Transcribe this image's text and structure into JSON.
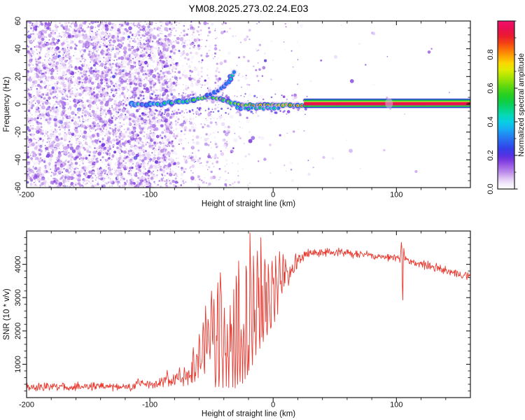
{
  "title": "YM08.2025.273.02.24.E03",
  "axes": {
    "x_label": "Height of straight line (km)",
    "spectrogram_y_label": "Frequency (Hz)",
    "snr_y_label": "SNR (10 * v/v)",
    "colorbar_label": "Normalized spectral amplitude"
  },
  "chart_data": [
    {
      "type": "heatmap",
      "title": "YM08.2025.273.02.24.E03",
      "xlabel": "Height of straight line (km)",
      "ylabel": "Frequency (Hz)",
      "xlim": [
        -200,
        160
      ],
      "ylim": [
        -60,
        60
      ],
      "x_major_ticks": [
        -200,
        -100,
        0,
        100
      ],
      "x_minor_step": 20,
      "y_major_ticks": [
        60,
        40,
        20,
        0,
        -20,
        -40,
        -60
      ],
      "y_minor_step": 5,
      "grid": false,
      "colorbar": {
        "label": "Normalized spectral amplitude",
        "range": [
          0,
          1
        ],
        "ticks": [
          0.0,
          0.2,
          0.4,
          0.6,
          0.8
        ],
        "minor_step": 0.1,
        "stops": [
          [
            0.0,
            "#ffffff"
          ],
          [
            0.03,
            "#f4ebfb"
          ],
          [
            0.06,
            "#e2c9f5"
          ],
          [
            0.1,
            "#bc8cea"
          ],
          [
            0.14,
            "#9a5ce4"
          ],
          [
            0.17,
            "#7b3ade"
          ],
          [
            0.2,
            "#5531e2"
          ],
          [
            0.24,
            "#3340e8"
          ],
          [
            0.28,
            "#2a62ee"
          ],
          [
            0.32,
            "#2287f2"
          ],
          [
            0.36,
            "#15aff2"
          ],
          [
            0.4,
            "#08cfe3"
          ],
          [
            0.44,
            "#05d8b4"
          ],
          [
            0.48,
            "#07d37c"
          ],
          [
            0.52,
            "#0ecd44"
          ],
          [
            0.56,
            "#27cf21"
          ],
          [
            0.61,
            "#5fd80f"
          ],
          [
            0.66,
            "#a2e405"
          ],
          [
            0.71,
            "#e0ec00"
          ],
          [
            0.75,
            "#fdd500"
          ],
          [
            0.79,
            "#fda403"
          ],
          [
            0.83,
            "#fb7209"
          ],
          [
            0.87,
            "#f34114"
          ],
          [
            0.91,
            "#ea1c2e"
          ],
          [
            0.95,
            "#e90f4d"
          ],
          [
            1.0,
            "#f10f6d"
          ]
        ]
      },
      "noise": {
        "description": "speckled galactic noise, dense for height < -95 km, fading rightward",
        "value_range": [
          0.02,
          0.18
        ],
        "density_profile": [
          [
            -200,
            1.0
          ],
          [
            -95,
            1.0
          ],
          [
            -78,
            0.42
          ],
          [
            -60,
            0.2
          ],
          [
            -40,
            0.1
          ],
          [
            -20,
            0.05
          ],
          [
            0,
            0.03
          ],
          [
            40,
            0.01
          ],
          [
            160,
            0.002
          ]
        ]
      },
      "streak_columns": [
        -189,
        -176,
        -165,
        -154,
        -143,
        -133,
        -124,
        -116,
        -108,
        -100,
        -93,
        -86,
        -79,
        -72,
        -66,
        -59,
        -53,
        -46,
        -38,
        -27,
        -20,
        -13
      ],
      "trail_points": [
        [
          -115,
          0.3,
          0.55
        ],
        [
          -112,
          -0.4,
          0.5
        ],
        [
          -109,
          0.4,
          0.62
        ],
        [
          -106,
          0,
          0.5
        ],
        [
          -103,
          -0.8,
          0.48
        ],
        [
          -100,
          0.2,
          0.56
        ],
        [
          -97,
          0.8,
          0.52
        ],
        [
          -94,
          0,
          0.62
        ],
        [
          -91,
          -0.4,
          0.52
        ],
        [
          -88,
          0.9,
          0.62
        ],
        [
          -85,
          1.4,
          0.56
        ],
        [
          -82,
          0.9,
          0.62
        ],
        [
          -79,
          1.8,
          0.66
        ],
        [
          -76,
          2.3,
          0.7
        ],
        [
          -73,
          1.9,
          0.6
        ],
        [
          -70,
          2.4,
          0.66
        ],
        [
          -67,
          2.9,
          0.72
        ],
        [
          -64,
          3.4,
          0.76
        ],
        [
          -61,
          3.9,
          0.7
        ],
        [
          -58,
          4.4,
          0.76
        ],
        [
          -55,
          4.9,
          0.8
        ],
        [
          -52,
          5.3,
          0.76
        ],
        [
          -49,
          4.9,
          0.7
        ],
        [
          -46,
          4.4,
          0.8
        ],
        [
          -43,
          3.9,
          0.76
        ],
        [
          -40,
          3.0,
          0.72
        ],
        [
          -37,
          2.0,
          0.76
        ],
        [
          -34,
          1.0,
          0.72
        ],
        [
          -31,
          0.4,
          0.78
        ],
        [
          -28,
          0,
          0.82
        ],
        [
          -25,
          -0.4,
          0.86
        ],
        [
          -22,
          -0.9,
          0.8
        ],
        [
          -19,
          -0.4,
          0.86
        ],
        [
          -16,
          -0.9,
          0.9
        ],
        [
          -13,
          -0.4,
          0.84
        ],
        [
          -10,
          -0.9,
          0.9
        ],
        [
          -7,
          -0.4,
          0.86
        ],
        [
          -4,
          -0.9,
          0.9
        ],
        [
          -1,
          -0.4,
          0.92
        ],
        [
          2,
          -0.9,
          0.88
        ],
        [
          5,
          -0.5,
          0.9
        ],
        [
          8,
          -0.9,
          0.92
        ],
        [
          11,
          -0.5,
          0.9
        ],
        [
          14,
          -0.9,
          0.93
        ],
        [
          17,
          -0.5,
          0.9
        ],
        [
          20,
          -0.6,
          0.92
        ],
        [
          23,
          -0.6,
          0.9
        ],
        [
          26,
          -0.6,
          0.93
        ]
      ],
      "lower_strand_points": [
        [
          -29,
          -2.6,
          0.6
        ],
        [
          -26,
          -3.1,
          0.55
        ],
        [
          -23,
          -2.7,
          0.62
        ],
        [
          -20,
          -3.2,
          0.65
        ],
        [
          -17,
          -2.7,
          0.6
        ],
        [
          -14,
          -3.1,
          0.62
        ],
        [
          -11,
          -2.6,
          0.66
        ],
        [
          -8,
          -3.0,
          0.6
        ],
        [
          -5,
          -2.6,
          0.62
        ],
        [
          -2,
          -3.0,
          0.56
        ],
        [
          1,
          -2.6,
          0.6
        ],
        [
          4,
          -2.9,
          0.56
        ]
      ],
      "branch_points": [
        [
          -54,
          6.4,
          0.45
        ],
        [
          -51,
          7.4,
          0.4
        ],
        [
          -48,
          8.6,
          0.45
        ],
        [
          -45,
          10.0,
          0.4
        ],
        [
          -42,
          11.6,
          0.46
        ],
        [
          -40,
          13.0,
          0.5
        ],
        [
          -38,
          14.6,
          0.46
        ],
        [
          -36,
          16.2,
          0.52
        ],
        [
          -35,
          20.0,
          0.66
        ],
        [
          -34,
          18.0,
          0.56
        ],
        [
          -33,
          21.2,
          0.6
        ],
        [
          -32,
          23.0,
          0.5
        ]
      ],
      "stripe": {
        "description": "saturated continuous echo line at ~0 Hz",
        "x_start": 25,
        "x_end": 160,
        "center_freq": 0.7,
        "layers": [
          [
            "#2d3fd6",
            1.7
          ],
          [
            "#17c63a",
            2.2
          ],
          [
            "#bfe707",
            1.1
          ],
          [
            "#e8134e",
            4.8
          ],
          [
            "#17c63a",
            2.1
          ],
          [
            "#2d3fd6",
            1.6
          ]
        ],
        "halo_x": 94
      }
    },
    {
      "type": "line",
      "xlabel": "Height of straight line (km)",
      "ylabel": "SNR (10 * v/v)",
      "xlim": [
        -200,
        160
      ],
      "ylim": [
        0,
        5000
      ],
      "x_major_ticks": [
        -200,
        -100,
        0,
        100
      ],
      "x_minor_step": 20,
      "y_major_ticks": [
        1000,
        2000,
        3000,
        4000
      ],
      "y_minor_step": 200,
      "grid": false,
      "color": "#e8392f",
      "envelope": [
        [
          -200,
          330,
          150
        ],
        [
          -192,
          320,
          140
        ],
        [
          -184,
          335,
          150
        ],
        [
          -176,
          325,
          140
        ],
        [
          -168,
          330,
          150
        ],
        [
          -160,
          345,
          160
        ],
        [
          -152,
          330,
          140
        ],
        [
          -144,
          325,
          145
        ],
        [
          -136,
          330,
          150
        ],
        [
          -128,
          335,
          150
        ],
        [
          -120,
          340,
          150
        ],
        [
          -114,
          330,
          140
        ],
        [
          -110,
          500,
          190
        ],
        [
          -106,
          430,
          170
        ],
        [
          -101,
          370,
          150
        ],
        [
          -96,
          390,
          160
        ],
        [
          -91,
          430,
          190
        ],
        [
          -87,
          510,
          240
        ],
        [
          -83,
          470,
          210
        ],
        [
          -79,
          540,
          260
        ],
        [
          -75,
          590,
          300
        ],
        [
          -71,
          640,
          330
        ],
        [
          -67,
          760,
          410
        ],
        [
          -64,
          700,
          380
        ],
        [
          -61,
          880,
          520
        ],
        [
          -58,
          1020,
          640
        ],
        [
          -55,
          1220,
          820
        ],
        [
          -52,
          1420,
          960
        ],
        [
          -49,
          1540,
          1040
        ],
        [
          -46,
          1750,
          1180
        ],
        [
          -43,
          1900,
          1280
        ],
        [
          -40,
          2000,
          1380
        ],
        [
          -37,
          2080,
          1460
        ],
        [
          -34,
          2160,
          1520
        ],
        [
          -31,
          2130,
          1580
        ],
        [
          -28,
          2260,
          1520
        ],
        [
          -25,
          2380,
          1450
        ],
        [
          -22,
          2470,
          1420
        ],
        [
          -19,
          2560,
          1380
        ],
        [
          -16,
          2650,
          1330
        ],
        [
          -13,
          2720,
          1270
        ],
        [
          -10,
          2780,
          1220
        ],
        [
          -7,
          2860,
          1130
        ],
        [
          -4,
          2920,
          1040
        ],
        [
          -1,
          2980,
          960
        ],
        [
          2,
          3120,
          880
        ],
        [
          5,
          3300,
          780
        ],
        [
          8,
          3490,
          690
        ],
        [
          11,
          3680,
          590
        ],
        [
          14,
          3870,
          480
        ],
        [
          17,
          4030,
          370
        ],
        [
          20,
          4150,
          290
        ],
        [
          23,
          4230,
          230
        ],
        [
          26,
          4290,
          190
        ],
        [
          30,
          4320,
          165
        ],
        [
          35,
          4340,
          155
        ],
        [
          40,
          4355,
          150
        ],
        [
          45,
          4360,
          150
        ],
        [
          50,
          4350,
          150
        ],
        [
          55,
          4345,
          150
        ],
        [
          60,
          4330,
          150
        ],
        [
          65,
          4315,
          150
        ],
        [
          70,
          4295,
          150
        ],
        [
          75,
          4275,
          150
        ],
        [
          80,
          4255,
          150
        ],
        [
          85,
          4235,
          150
        ],
        [
          90,
          4210,
          150
        ],
        [
          95,
          4185,
          150
        ],
        [
          100,
          4165,
          150
        ],
        [
          103,
          4145,
          150
        ],
        [
          107,
          4115,
          160
        ],
        [
          110,
          4090,
          160
        ],
        [
          115,
          4050,
          160
        ],
        [
          120,
          4005,
          165
        ],
        [
          125,
          3955,
          165
        ],
        [
          130,
          3905,
          170
        ],
        [
          135,
          3855,
          170
        ],
        [
          140,
          3805,
          170
        ],
        [
          145,
          3755,
          175
        ],
        [
          150,
          3705,
          180
        ],
        [
          155,
          3655,
          185
        ],
        [
          160,
          3600,
          190
        ]
      ],
      "spikes": [
        [
          -86,
          820
        ],
        [
          -76,
          900
        ],
        [
          -65,
          1500
        ],
        [
          -62,
          1300
        ],
        [
          -60,
          1900
        ],
        [
          -57,
          2250
        ],
        [
          -55,
          2750
        ],
        [
          -53,
          2350
        ],
        [
          -50,
          3200
        ],
        [
          -48,
          2950
        ],
        [
          -45,
          3450
        ],
        [
          -43,
          3750
        ],
        [
          -41,
          3150
        ],
        [
          -38,
          3950
        ],
        [
          -36,
          3500
        ],
        [
          -33,
          3850
        ],
        [
          -30,
          3650
        ],
        [
          -28,
          4100
        ],
        [
          -25,
          4200
        ],
        [
          -22,
          3950
        ],
        [
          -19,
          4950
        ],
        [
          -16,
          4250
        ],
        [
          -13,
          4400
        ],
        [
          -10,
          4800
        ],
        [
          -7,
          4150
        ],
        [
          -4,
          4000
        ],
        [
          -1,
          4100
        ],
        [
          2,
          4250
        ],
        [
          5,
          4380
        ],
        [
          8,
          4300
        ],
        [
          104,
          4660
        ],
        [
          105,
          2930
        ],
        [
          106,
          4480
        ]
      ],
      "dips": [
        [
          -47,
          320
        ],
        [
          -44,
          330
        ],
        [
          -41,
          300
        ],
        [
          -38,
          340
        ],
        [
          -36,
          300
        ],
        [
          -33,
          320
        ],
        [
          -31,
          290
        ],
        [
          -29,
          400
        ],
        [
          -27,
          480
        ],
        [
          -25,
          430
        ],
        [
          -23,
          560
        ],
        [
          -21,
          680
        ],
        [
          -19.5,
          820
        ],
        [
          -17,
          980
        ],
        [
          -14,
          1280
        ],
        [
          -11,
          1480
        ],
        [
          -8,
          1680
        ],
        [
          -5,
          1880
        ],
        [
          -2,
          2080
        ],
        [
          1,
          2280
        ]
      ]
    }
  ]
}
